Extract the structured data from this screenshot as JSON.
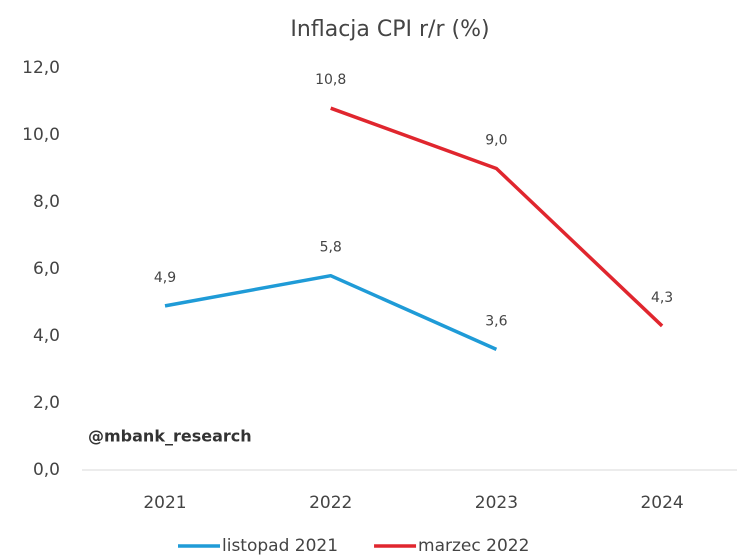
{
  "chart_data": {
    "type": "line",
    "title": "Inflacja CPI r/r (%)",
    "categories": [
      "2021",
      "2022",
      "2023",
      "2024"
    ],
    "series": [
      {
        "name": "listopad 2021",
        "color": "#1f9bd7",
        "values": [
          4.9,
          5.8,
          3.6,
          null
        ],
        "value_labels": [
          "4,9",
          "5,8",
          "3,6",
          null
        ]
      },
      {
        "name": "marzec 2022",
        "color": "#e0262e",
        "values": [
          null,
          10.8,
          9.0,
          4.3
        ],
        "value_labels": [
          null,
          "10,8",
          "9,0",
          "4,3"
        ]
      }
    ],
    "ylim": [
      0,
      12
    ],
    "yticks": [
      {
        "value": 0,
        "label": "0,0"
      },
      {
        "value": 2,
        "label": "2,0"
      },
      {
        "value": 4,
        "label": "4,0"
      },
      {
        "value": 6,
        "label": "6,0"
      },
      {
        "value": 8,
        "label": "8,0"
      },
      {
        "value": 10,
        "label": "10,0"
      },
      {
        "value": 12,
        "label": "12,0"
      }
    ],
    "grid": false,
    "legend": "bottom",
    "annotations": [
      "@mbank_research"
    ]
  }
}
